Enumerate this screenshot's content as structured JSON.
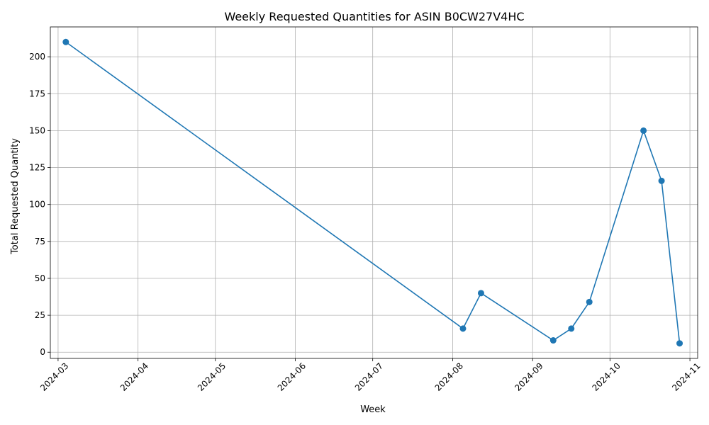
{
  "chart_data": {
    "type": "line",
    "title": "Weekly Requested Quantities for ASIN B0CW27V4HC",
    "xlabel": "Week",
    "ylabel": "Total Requested Quantity",
    "x_tick_labels": [
      "2024-03",
      "2024-04",
      "2024-05",
      "2024-06",
      "2024-07",
      "2024-08",
      "2024-09",
      "2024-10",
      "2024-11"
    ],
    "y_tick_labels": [
      "0",
      "25",
      "50",
      "75",
      "100",
      "125",
      "150",
      "175",
      "200"
    ],
    "xlim": [
      "2024-02-27",
      "2024-11-04"
    ],
    "ylim": [
      -4.2,
      220.2
    ],
    "grid": true,
    "line_color": "#1f77b4",
    "series": [
      {
        "x": [
          "2024-03-04",
          "2024-08-05",
          "2024-08-12",
          "2024-09-09",
          "2024-09-16",
          "2024-09-23",
          "2024-10-14",
          "2024-10-21",
          "2024-10-28"
        ],
        "values": [
          210,
          16,
          40,
          8,
          16,
          34,
          150,
          116,
          6
        ]
      }
    ]
  }
}
